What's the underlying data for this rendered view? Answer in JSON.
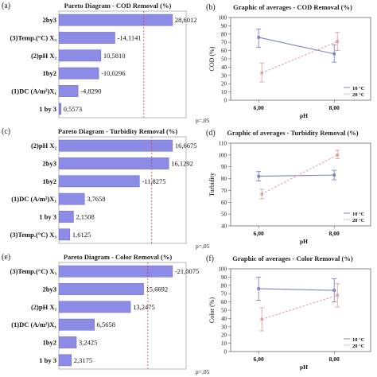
{
  "chart_data": [
    {
      "id": "a",
      "panel_label": "(a)",
      "type": "bar",
      "orientation": "horizontal",
      "title": "Pareto Diagram  -  COD  Removal   (%)",
      "categories": [
        "2by3",
        "(3)Temp.(°C) X₃",
        "(2)pH  X₂",
        "1by2",
        "(1)DC  (A/m²)X₁",
        "1 by  3"
      ],
      "values": [
        28.6012,
        -14.1141,
        10.581,
        -10.0296,
        -4.829,
        0.5573
      ],
      "value_labels": [
        "28,6012",
        "-14,1141",
        "10,5810",
        "-10,0296",
        "-4,8290",
        "0,5573"
      ],
      "significance_label": "p=,05",
      "significance_value": 2.8,
      "bar_color": "#8c8ce6"
    },
    {
      "id": "b",
      "panel_label": "(b)",
      "type": "line",
      "title": "Graphic  of  averages  -  COD  Removal   (%)",
      "xlabel": "pH",
      "ylabel": "COD (%)",
      "categories": [
        "6,00",
        "8,00"
      ],
      "ylim": [
        0,
        100
      ],
      "yticks": [
        0,
        10,
        20,
        30,
        40,
        50,
        60,
        70,
        80,
        90,
        100
      ],
      "series": [
        {
          "name": "10 °C",
          "values": [
            76,
            56
          ],
          "err_low": [
            64,
            46
          ],
          "err_high": [
            86,
            67
          ],
          "color": "#7a86c0",
          "dashed": false
        },
        {
          "name": "20 °C",
          "values": [
            33,
            71
          ],
          "err_low": [
            22,
            60
          ],
          "err_high": [
            45,
            82
          ],
          "color": "#e0a0a0",
          "dashed": true
        }
      ],
      "legend_position": "bottom-right"
    },
    {
      "id": "c",
      "panel_label": "(c)",
      "type": "bar",
      "orientation": "horizontal",
      "title": "Pareto Diagram  -  Turbidity  Removal   (%)",
      "categories": [
        "(2)pH  X₂",
        "2by3",
        "1by2",
        "(1)DC  (A/m²)X₁",
        "1 by  3",
        "(3)Temp.(°C) X₃"
      ],
      "values": [
        16.6675,
        16.1292,
        -11.8275,
        3.7658,
        2.1508,
        1.6125
      ],
      "value_labels": [
        "16,6675",
        "16,1292",
        "-11,8275",
        "3,7658",
        "2,1508",
        "1,6125"
      ],
      "significance_label": "p=,05",
      "significance_value": 2.8,
      "bar_color": "#8c8ce6"
    },
    {
      "id": "d",
      "panel_label": "(d)",
      "type": "line",
      "title": "Graphic  of  averages  -  Turbidity  Removal   (%)",
      "xlabel": "pH",
      "ylabel": "Turbidity",
      "categories": [
        "6,00",
        "8,00"
      ],
      "ylim": [
        40,
        110
      ],
      "yticks": [
        40,
        50,
        60,
        70,
        80,
        90,
        100,
        110
      ],
      "series": [
        {
          "name": "10 °C",
          "values": [
            82,
            83
          ],
          "err_low": [
            78,
            79
          ],
          "err_high": [
            86,
            87
          ],
          "color": "#7a86c0",
          "dashed": false
        },
        {
          "name": "20 °C",
          "values": [
            67,
            100
          ],
          "err_low": [
            63,
            97
          ],
          "err_high": [
            71,
            104
          ],
          "color": "#e0a0a0",
          "dashed": true
        }
      ],
      "legend_position": "bottom-right"
    },
    {
      "id": "e",
      "panel_label": "(e)",
      "type": "bar",
      "orientation": "horizontal",
      "title": "Pareto Diagram  -  Color  Removal   (%)",
      "categories": [
        "(3)Temp.(°C) X₃",
        "2by3",
        "(2)pH  X₂",
        "(1)DC  (A/m²)X₁",
        "1by2",
        "1 by  3"
      ],
      "values": [
        -21.0075,
        15.6692,
        13.2475,
        6.5658,
        3.2425,
        2.3175
      ],
      "value_labels": [
        "-21,0075",
        "15,6692",
        "13,2475",
        "6,5658",
        "3,2425",
        "2,3175"
      ],
      "significance_label": "p=,05",
      "significance_value": 2.8,
      "bar_color": "#8c8ce6"
    },
    {
      "id": "f",
      "panel_label": "(f)",
      "type": "line",
      "title": "Graphic  of  averages  -  Color  Removal   (%)",
      "xlabel": "pH",
      "ylabel": "Color (%)",
      "categories": [
        "6,00",
        "8,00"
      ],
      "ylim": [
        0,
        100
      ],
      "yticks": [
        0,
        10,
        20,
        30,
        40,
        50,
        60,
        70,
        80,
        90,
        100
      ],
      "series": [
        {
          "name": "10 °C",
          "values": [
            76,
            74
          ],
          "err_low": [
            62,
            60
          ],
          "err_high": [
            90,
            88
          ],
          "color": "#7a86c0",
          "dashed": false
        },
        {
          "name": "20 °C",
          "values": [
            39,
            68
          ],
          "err_low": [
            25,
            54
          ],
          "err_high": [
            53,
            82
          ],
          "color": "#e0a0a0",
          "dashed": true
        }
      ],
      "legend_position": "bottom-right"
    }
  ]
}
